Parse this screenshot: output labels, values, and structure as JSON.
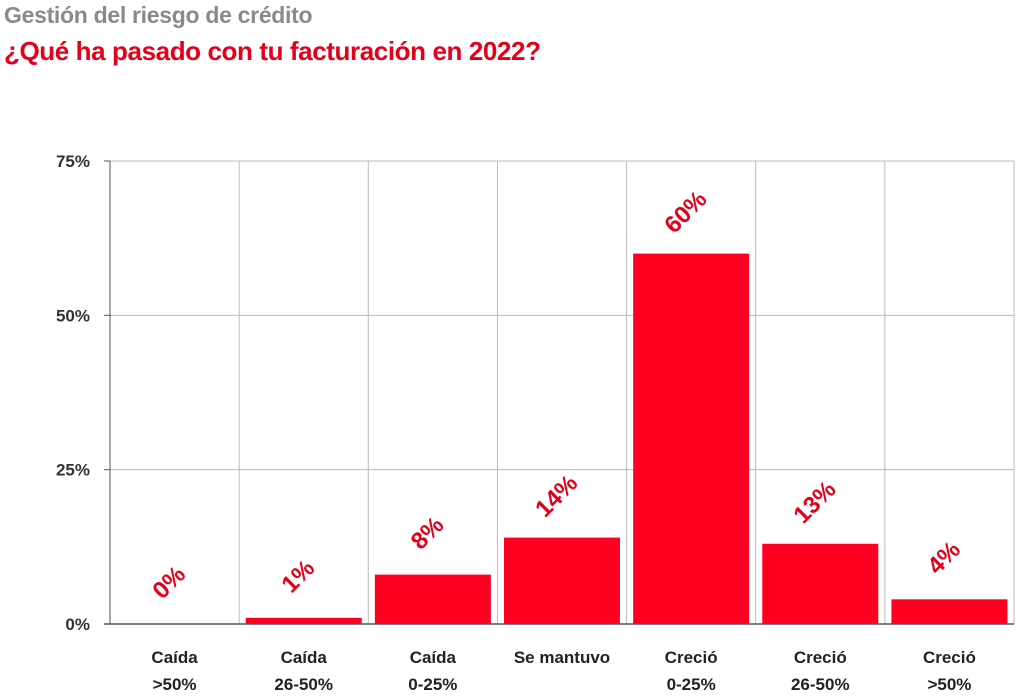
{
  "header": {
    "title": "Gestión del riesgo de crédito",
    "subtitle": "¿Qué ha pasado con tu facturación en 2022?"
  },
  "colors": {
    "bar": "#ff0022",
    "label": "#e4001b",
    "grid": "#bbbbbb",
    "axis": "#555555"
  },
  "chart_data": {
    "type": "bar",
    "title": "¿Qué ha pasado con tu facturación en 2022?",
    "categories": [
      [
        "Caída",
        ">50%"
      ],
      [
        "Caída",
        "26-50%"
      ],
      [
        "Caída",
        "0-25%"
      ],
      [
        "Se mantuvo"
      ],
      [
        "Creció",
        "0-25%"
      ],
      [
        "Creció",
        "26-50%"
      ],
      [
        "Creció",
        ">50%"
      ]
    ],
    "values": [
      0,
      1,
      8,
      14,
      60,
      13,
      4
    ],
    "data_labels": [
      "0%",
      "1%",
      "8%",
      "14%",
      "60%",
      "13%",
      "4%"
    ],
    "yticks": [
      0,
      25,
      50,
      75
    ],
    "ytick_labels": [
      "0%",
      "25%",
      "50%",
      "75%"
    ],
    "ylim": [
      0,
      75
    ],
    "xlabel": "",
    "ylabel": "",
    "grid": true,
    "legend": "none"
  }
}
